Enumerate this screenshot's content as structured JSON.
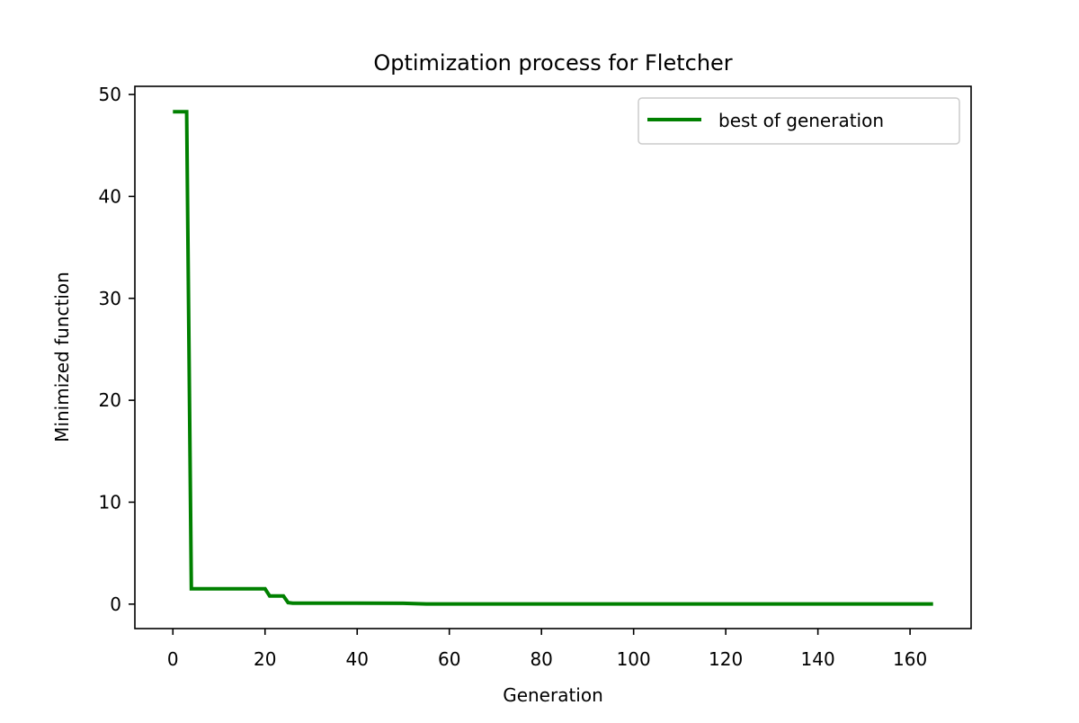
{
  "chart_data": {
    "type": "line",
    "title": "Optimization process for Fletcher",
    "xlabel": "Generation",
    "ylabel": "Minimized function",
    "xlim": [
      -8.25,
      173.25
    ],
    "ylim": [
      -2.4,
      50.8
    ],
    "xticks": [
      0,
      20,
      40,
      60,
      80,
      100,
      120,
      140,
      160
    ],
    "yticks": [
      0,
      10,
      20,
      30,
      40,
      50
    ],
    "grid": false,
    "legend": {
      "placement": "upper right",
      "entries": [
        "best of generation"
      ]
    },
    "series": [
      {
        "name": "best of generation",
        "color": "#008000",
        "x": [
          0,
          1,
          2,
          3,
          4,
          5,
          10,
          15,
          20,
          21,
          22,
          23,
          24,
          25,
          26,
          30,
          40,
          50,
          55,
          60,
          80,
          100,
          120,
          140,
          165
        ],
        "y": [
          48.3,
          48.3,
          48.3,
          48.3,
          1.5,
          1.5,
          1.5,
          1.5,
          1.5,
          0.8,
          0.8,
          0.8,
          0.8,
          0.15,
          0.1,
          0.1,
          0.1,
          0.08,
          0.02,
          0.02,
          0.02,
          0.02,
          0.02,
          0.02,
          0.02
        ]
      }
    ]
  }
}
